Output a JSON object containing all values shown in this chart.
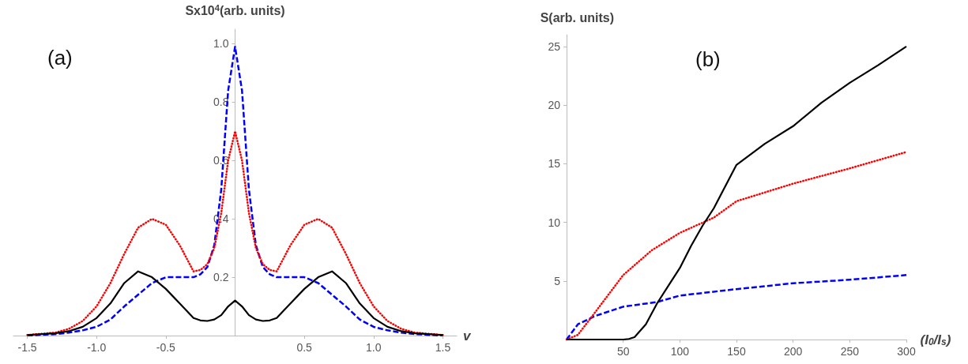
{
  "chart_data": [
    {
      "type": "line",
      "ylabel": "Sx10$^{4}$(arb. units)",
      "xlabel": "v",
      "annotations": [
        "(a)"
      ],
      "xlim": [
        -1.6,
        1.6
      ],
      "ylim": [
        0,
        1.05
      ],
      "xticks": [
        -1.5,
        {
          "value": -1,
          "label": "-1.0"
        },
        -0.5,
        0.5,
        {
          "value": 1,
          "label": "1.0"
        },
        1.5
      ],
      "yticks": [
        0.2,
        0.4,
        0.6,
        0.8,
        {
          "value": 1,
          "label": "1.0"
        }
      ],
      "x": [
        -1.5,
        -1.3,
        -1.2,
        -1.1,
        -1.0,
        -0.9,
        -0.8,
        -0.7,
        -0.6,
        -0.5,
        -0.4,
        -0.3,
        -0.25,
        -0.2,
        -0.15,
        -0.1,
        -0.05,
        0,
        0.05,
        0.1,
        0.15,
        0.2,
        0.25,
        0.3,
        0.4,
        0.5,
        0.6,
        0.7,
        0.8,
        0.9,
        1.0,
        1.1,
        1.2,
        1.3,
        1.5
      ],
      "series": [
        {
          "color": "#000000",
          "line_style": "solid",
          "values": [
            0.002,
            0.008,
            0.015,
            0.03,
            0.06,
            0.11,
            0.18,
            0.22,
            0.2,
            0.16,
            0.11,
            0.06,
            0.052,
            0.05,
            0.055,
            0.07,
            0.1,
            0.12,
            0.1,
            0.07,
            0.055,
            0.05,
            0.052,
            0.06,
            0.11,
            0.16,
            0.2,
            0.22,
            0.18,
            0.11,
            0.06,
            0.03,
            0.015,
            0.008,
            0.002
          ]
        },
        {
          "color": "#ff0000",
          "line_style": "dotted",
          "values": [
            0.002,
            0.01,
            0.023,
            0.05,
            0.1,
            0.18,
            0.28,
            0.37,
            0.4,
            0.38,
            0.31,
            0.22,
            0.225,
            0.245,
            0.3,
            0.42,
            0.6,
            0.7,
            0.6,
            0.42,
            0.3,
            0.245,
            0.225,
            0.22,
            0.31,
            0.38,
            0.4,
            0.37,
            0.28,
            0.18,
            0.1,
            0.05,
            0.023,
            0.01,
            0.002
          ]
        },
        {
          "color": "#0000ff",
          "line_style": "dashed",
          "values": [
            0,
            0.005,
            0.01,
            0.018,
            0.03,
            0.055,
            0.1,
            0.14,
            0.18,
            0.2,
            0.2,
            0.2,
            0.21,
            0.235,
            0.31,
            0.5,
            0.84,
            0.99,
            0.84,
            0.5,
            0.31,
            0.235,
            0.21,
            0.2,
            0.2,
            0.2,
            0.18,
            0.14,
            0.1,
            0.055,
            0.03,
            0.018,
            0.01,
            0.005,
            0
          ]
        }
      ],
      "grid": false,
      "marker": "none"
    },
    {
      "type": "line",
      "ylabel": "S(arb. units)",
      "xlabel": "(I$_{0}$/I$_{s}$)",
      "annotations": [
        "(b)"
      ],
      "xlim": [
        0,
        300
      ],
      "ylim": [
        0,
        26
      ],
      "xticks": [
        50,
        100,
        150,
        200,
        250,
        300
      ],
      "yticks": [
        5,
        10,
        15,
        20,
        25
      ],
      "series": [
        {
          "color": "#000000",
          "line_style": "solid",
          "x": [
            0,
            50,
            55,
            60,
            70,
            80,
            90,
            100,
            110,
            120,
            130,
            150,
            175,
            200,
            225,
            250,
            275,
            300
          ],
          "values": [
            0,
            0,
            0.05,
            0.2,
            1.3,
            3.1,
            4.6,
            6.1,
            8,
            9.7,
            11.2,
            14.9,
            16.7,
            18.2,
            20.2,
            21.9,
            23.4,
            25
          ]
        },
        {
          "color": "#ff0000",
          "line_style": "dotted",
          "x": [
            0,
            10,
            25,
            50,
            75,
            100,
            130,
            150,
            200,
            250,
            300
          ],
          "values": [
            0,
            0.4,
            2.3,
            5.5,
            7.6,
            9.1,
            10.4,
            11.8,
            13.3,
            14.6,
            16
          ]
        },
        {
          "color": "#0000ff",
          "line_style": "dashed",
          "x": [
            0,
            10,
            25,
            50,
            80,
            100,
            150,
            200,
            250,
            300
          ],
          "values": [
            0,
            1.3,
            2,
            2.8,
            3.2,
            3.75,
            4.3,
            4.8,
            5.1,
            5.5
          ]
        }
      ],
      "grid": false,
      "marker": "none"
    }
  ]
}
